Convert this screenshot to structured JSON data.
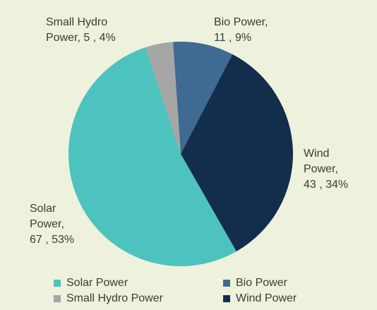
{
  "chart_data": {
    "type": "pie",
    "categories": [
      "Solar Power",
      "Bio Power",
      "Small Hydro Power",
      "Wind Power"
    ],
    "values": [
      67,
      11,
      5,
      43
    ],
    "value_labels": [
      [
        "Solar",
        "Power,",
        "67 , 53%"
      ],
      [
        "Bio Power,",
        "11 , 9%"
      ],
      [
        "Small Hydro",
        "Power,  5 , 4%"
      ],
      [
        "Wind",
        "Power,",
        "43 , 34%"
      ]
    ],
    "colors": [
      "#4cc3bf",
      "#3e6a93",
      "#a6a6a6",
      "#132d4d"
    ],
    "legend": "bottom"
  }
}
